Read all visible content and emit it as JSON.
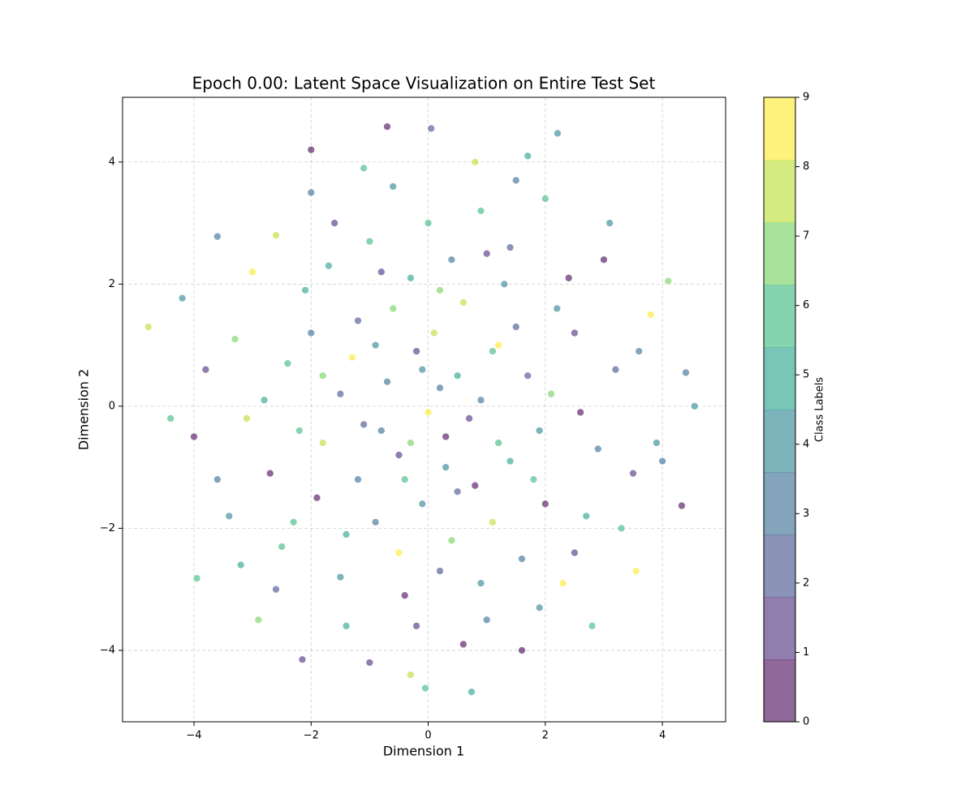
{
  "chart_data": {
    "type": "scatter",
    "title": "Epoch 0.00: Latent Space Visualization on Entire Test Set",
    "x_label": "Dimension 1",
    "y_label": "Dimension 2",
    "xlim": [
      -5.22,
      5.08
    ],
    "ylim": [
      -5.17,
      5.06
    ],
    "xticks": [
      {
        "value": -4,
        "label": "−4"
      },
      {
        "value": -2,
        "label": "−2"
      },
      0,
      2,
      4
    ],
    "yticks": [
      {
        "value": -4,
        "label": "−4"
      },
      {
        "value": -2,
        "label": "−2"
      },
      0,
      2,
      4
    ],
    "grid": true,
    "x": [
      -4.78,
      2.21,
      -0.7,
      0.74,
      4.55,
      4.33,
      -2.15,
      -3.95,
      0.05,
      -0.05,
      4.1,
      -4.2,
      3.55,
      -2,
      1.7,
      -4.4,
      4.4,
      -3.6,
      3.8,
      -2.9,
      0.2,
      -0.5,
      1.1,
      -1.2,
      0.8,
      -0.3,
      1.9,
      -1.8,
      0.4,
      -0.9,
      2.5,
      -2.4,
      0,
      1.4,
      -1.5,
      2.7,
      -2.7,
      0.6,
      -0.7,
      1.2,
      -1.1,
      0.3,
      -0.2,
      2.1,
      -2.1,
      1.6,
      -0.4,
      0.9,
      -3.1,
      3.2,
      -1.6,
      2.3,
      -2.5,
      1,
      -0.6,
      3,
      -3.3,
      0.5,
      -0.8,
      1.5,
      -1.3,
      0.7,
      -0.1,
      1.8,
      -1.9,
      0.1,
      2.9,
      -2.8,
      1.3,
      -1,
      0.2,
      -0.3,
      3.5,
      -3.6,
      2,
      -1.4,
      0.6,
      -0.9,
      1.7,
      -2.2,
      0.4,
      -0.5,
      2.6,
      -1.7,
      3.9,
      -3.8,
      1.1,
      -1.2,
      0,
      2.4,
      -2.6,
      1.9,
      -0.2,
      3.3,
      -3,
      0.9,
      -0.6,
      1.4,
      -1.5,
      0.3,
      2.2,
      -2.3,
      4,
      -4,
      0.8,
      -1,
      3.1,
      -3.2,
      1.6,
      -2,
      2.8,
      -0.8,
      1.2,
      -0.1,
      0.5,
      -1.4,
      2,
      -2,
      0.2,
      -0.4,
      1,
      -3.4,
      3.6,
      -1.1,
      0.9,
      -2.6,
      2.5,
      -1.8,
      1.5,
      -0.3
    ],
    "y": [
      1.3,
      4.47,
      4.58,
      -4.68,
      0,
      -1.63,
      -4.15,
      -2.82,
      4.55,
      -4.62,
      2.05,
      1.77,
      -2.7,
      4.2,
      4.1,
      -0.2,
      0.55,
      2.78,
      1.5,
      -3.5,
      0.3,
      -0.8,
      0.9,
      1.4,
      -1.3,
      2.1,
      -0.4,
      -0.6,
      -2.2,
      -1.9,
      1.2,
      0.7,
      -0.1,
      2.6,
      -2.8,
      -1.8,
      -1.1,
      1.7,
      0.4,
      -0.6,
      -0.3,
      -1,
      0.9,
      0.2,
      1.9,
      -2.5,
      -3.1,
      3.2,
      -0.2,
      0.6,
      3,
      -2.9,
      -2.3,
      -3.5,
      3.6,
      2.4,
      1.1,
      0.5,
      -0.4,
      1.3,
      0.8,
      -0.2,
      -1.6,
      -1.2,
      -1.5,
      1.2,
      -0.7,
      0.1,
      2,
      2.7,
      -2.7,
      -0.6,
      -1.1,
      -1.2,
      3.4,
      -3.6,
      -3.9,
      1,
      0.5,
      -0.4,
      2.4,
      -2.4,
      -0.1,
      2.3,
      -0.6,
      0.6,
      -1.9,
      -1.2,
      3,
      2.1,
      -3,
      -3.3,
      -3.6,
      -2,
      2.2,
      0.1,
      1.6,
      -0.9,
      0.2,
      -0.5,
      1.6,
      -1.9,
      -0.9,
      -0.5,
      4,
      -4.2,
      3,
      -2.6,
      -4,
      3.5,
      -3.6,
      2.2,
      1,
      0.6,
      -1.4,
      -2.1,
      -1.6,
      1.2,
      1.9,
      -1.2,
      2.5,
      -1.8,
      0.9,
      3.9,
      -2.9,
      2.8,
      -2.4,
      0.5,
      3.7,
      -4.4
    ],
    "c": [
      8,
      4,
      0,
      5,
      4,
      0,
      1,
      6,
      2,
      6,
      7,
      4,
      9,
      0,
      5,
      6,
      3,
      3,
      9,
      7,
      3,
      1,
      6,
      2,
      0,
      5,
      4,
      8,
      7,
      3,
      1,
      6,
      9,
      2,
      4,
      5,
      0,
      8,
      3,
      6,
      2,
      4,
      1,
      7,
      5,
      3,
      0,
      6,
      8,
      2,
      1,
      9,
      6,
      3,
      4,
      0,
      7,
      5,
      3,
      2,
      9,
      1,
      4,
      6,
      0,
      8,
      3,
      5,
      4,
      6,
      2,
      7,
      1,
      3,
      6,
      5,
      0,
      4,
      2,
      6,
      3,
      9,
      0,
      5,
      4,
      1,
      8,
      3,
      6,
      0,
      2,
      4,
      1,
      6,
      9,
      3,
      7,
      5,
      2,
      0,
      4,
      6,
      3,
      0,
      8,
      1,
      4,
      5,
      0,
      3,
      6,
      1,
      9,
      4,
      2,
      5,
      0,
      3,
      7,
      6,
      1,
      4,
      3,
      6,
      4,
      8,
      1,
      7,
      3,
      8
    ],
    "colorbar": {
      "label": "Class Labels",
      "lim": [
        0,
        9
      ],
      "ticks": [
        0,
        1,
        2,
        3,
        4,
        5,
        6,
        7,
        8,
        9
      ],
      "colors": [
        "#440154",
        "#482878",
        "#3e4989",
        "#31688e",
        "#26828e",
        "#1f9e89",
        "#35b779",
        "#6ece58",
        "#b5de2b",
        "#fde725"
      ]
    }
  }
}
